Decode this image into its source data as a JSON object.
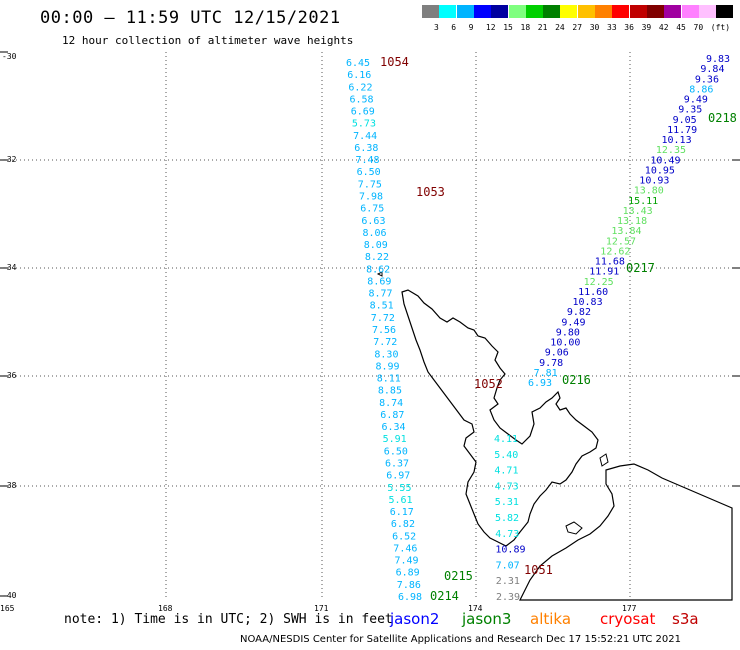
{
  "header": {
    "title": "00:00 – 11:59 UTC 12/15/2021",
    "subtitle": "12 hour collection of altimeter wave heights"
  },
  "scale": {
    "colors": [
      "#7f7f7f",
      "#00ffff",
      "#00b4ff",
      "#0000ff",
      "#0000a0",
      "#7fff7f",
      "#00d000",
      "#008000",
      "#ffff00",
      "#ffc000",
      "#ff8000",
      "#ff0000",
      "#c00000",
      "#800000",
      "#a000a0",
      "#ff80ff",
      "#ffc0ff",
      "#000000"
    ],
    "labels": [
      "3",
      "6",
      "9",
      "12",
      "15",
      "18",
      "21",
      "24",
      "27",
      "30",
      "33",
      "36",
      "39",
      "42",
      "45",
      "70",
      "(ft)"
    ]
  },
  "axes": {
    "lat_labels": [
      "-30",
      "-32",
      "-34",
      "-36",
      "-38",
      "-40"
    ],
    "lon_labels": [
      "165",
      "168",
      "171",
      "174",
      "177"
    ]
  },
  "passes": [
    {
      "label": "1054",
      "color": "#800000"
    },
    {
      "label": "1053",
      "color": "#800000"
    },
    {
      "label": "1052",
      "color": "#800000"
    },
    {
      "label": "1051",
      "color": "#800000"
    },
    {
      "label": "0218",
      "color": "#008000"
    },
    {
      "label": "0217",
      "color": "#008000"
    },
    {
      "label": "0216",
      "color": "#008000"
    },
    {
      "label": "0215",
      "color": "#008000"
    },
    {
      "label": "0214",
      "color": "#008000"
    }
  ],
  "values": {
    "track_west": [
      "6.45",
      "6.16",
      "6.22",
      "6.58",
      "6.69",
      "5.73",
      "7.44",
      "6.38",
      "7.48",
      "6.50",
      "7.75",
      "7.98",
      "6.75",
      "6.63",
      "8.06",
      "8.09",
      "8.22",
      "8.62",
      "8.69",
      "8.77",
      "8.51",
      "7.72",
      "7.56",
      "7.72",
      "8.30",
      "8.99",
      "8.11",
      "8.85",
      "8.74",
      "6.87",
      "6.34",
      "5.91",
      "6.50",
      "6.37",
      "6.97",
      "5.55",
      "5.61",
      "6.17",
      "6.82",
      "6.52",
      "7.46",
      "7.49",
      "6.89",
      "7.86",
      "6.98"
    ],
    "track_mid": [
      "4.11",
      "5.40",
      "4.71",
      "4.73",
      "5.31",
      "5.82",
      "4.73",
      "10.89",
      "7.07",
      "2.31",
      "2.39"
    ],
    "track_east": [
      "9.83",
      "9.84",
      "9.36",
      "8.86",
      "9.49",
      "9.35",
      "9.05",
      "11.79",
      "10.13",
      "12.35",
      "10.49",
      "10.95",
      "10.93",
      "13.80",
      "15.11",
      "13.43",
      "13.18",
      "13.84",
      "12.57",
      "12.62",
      "11.68",
      "11.91",
      "12.25",
      "11.60",
      "10.83",
      "9.82",
      "9.49",
      "9.80",
      "10.00",
      "9.06",
      "9.78",
      "7.81",
      "6.93"
    ]
  },
  "note": "note: 1) Time is in UTC; 2) SWH is in feet",
  "satellites": [
    {
      "name": "jason2",
      "color": "#0000ff"
    },
    {
      "name": "jason3",
      "color": "#008000"
    },
    {
      "name": "altika",
      "color": "#ff8000"
    },
    {
      "name": "cryosat",
      "color": "#ff0000"
    },
    {
      "name": "s3a",
      "color": "#c00000"
    }
  ],
  "footer": "NOAA/NESDIS Center for Satellite Applications and Research    Dec 17 15:52:21 UTC 2021"
}
